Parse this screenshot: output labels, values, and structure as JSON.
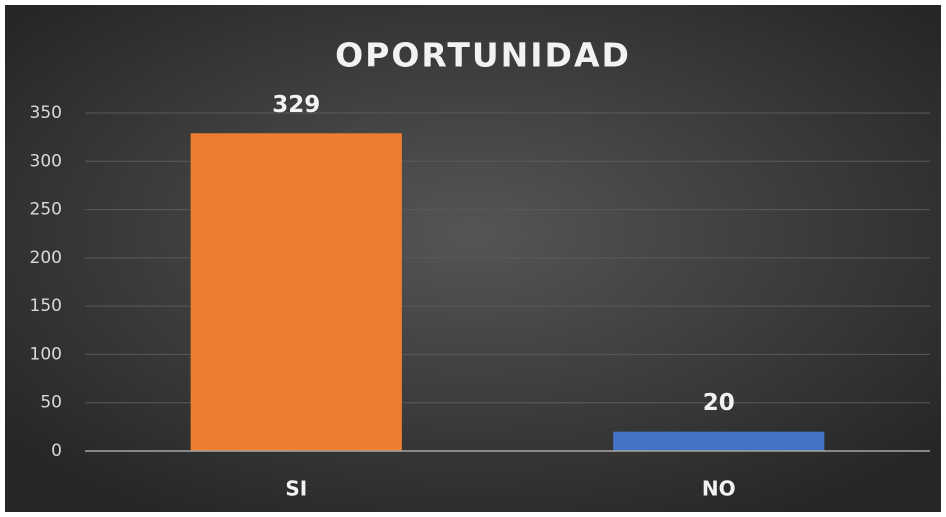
{
  "chart_data": {
    "type": "bar",
    "title": "OPORTUNIDAD",
    "categories": [
      "SI",
      "NO"
    ],
    "values": [
      329,
      20
    ],
    "colors": [
      "#ed7d31",
      "#4472c4"
    ],
    "ylim": [
      0,
      350
    ],
    "yticks": [
      0,
      50,
      100,
      150,
      200,
      250,
      300,
      350
    ],
    "grid": true
  }
}
